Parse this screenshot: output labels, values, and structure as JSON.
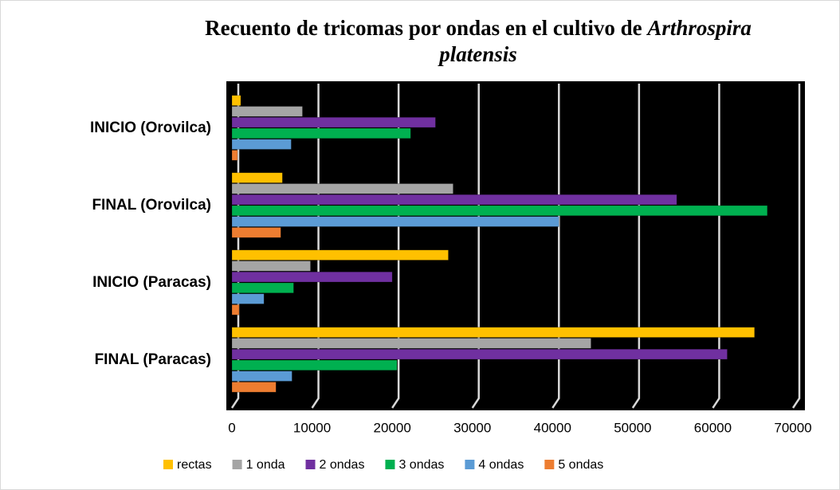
{
  "chart_data": {
    "type": "bar",
    "orientation": "horizontal",
    "title_parts": [
      "Recuento de tricomas por ondas en el cultivo de",
      "Arthrospira",
      "platensis"
    ],
    "categories": [
      "INICIO (Orovilca)",
      "FINAL (Orovilca)",
      "INICIO (Paracas)",
      "FINAL (Paracas)"
    ],
    "series": [
      {
        "name": "rectas",
        "color": "#ffc000",
        "values": [
          1100,
          6300,
          27000,
          65200
        ]
      },
      {
        "name": "1 onda",
        "color": "#a5a5a5",
        "values": [
          8800,
          27600,
          9800,
          44800
        ]
      },
      {
        "name": "2 ondas",
        "color": "#7030a0",
        "values": [
          25400,
          55500,
          20000,
          61800
        ]
      },
      {
        "name": "3 ondas",
        "color": "#00b050",
        "values": [
          22300,
          66800,
          7700,
          20600
        ]
      },
      {
        "name": "4 ondas",
        "color": "#5b9bd5",
        "values": [
          7400,
          40800,
          4000,
          7500
        ]
      },
      {
        "name": "5 ondas",
        "color": "#ed7d31",
        "values": [
          700,
          6100,
          900,
          5500
        ]
      }
    ],
    "xlim": [
      0,
      70000
    ],
    "xticks": [
      0,
      10000,
      20000,
      30000,
      40000,
      50000,
      60000,
      70000
    ],
    "grid": true,
    "legend": "bottom"
  }
}
